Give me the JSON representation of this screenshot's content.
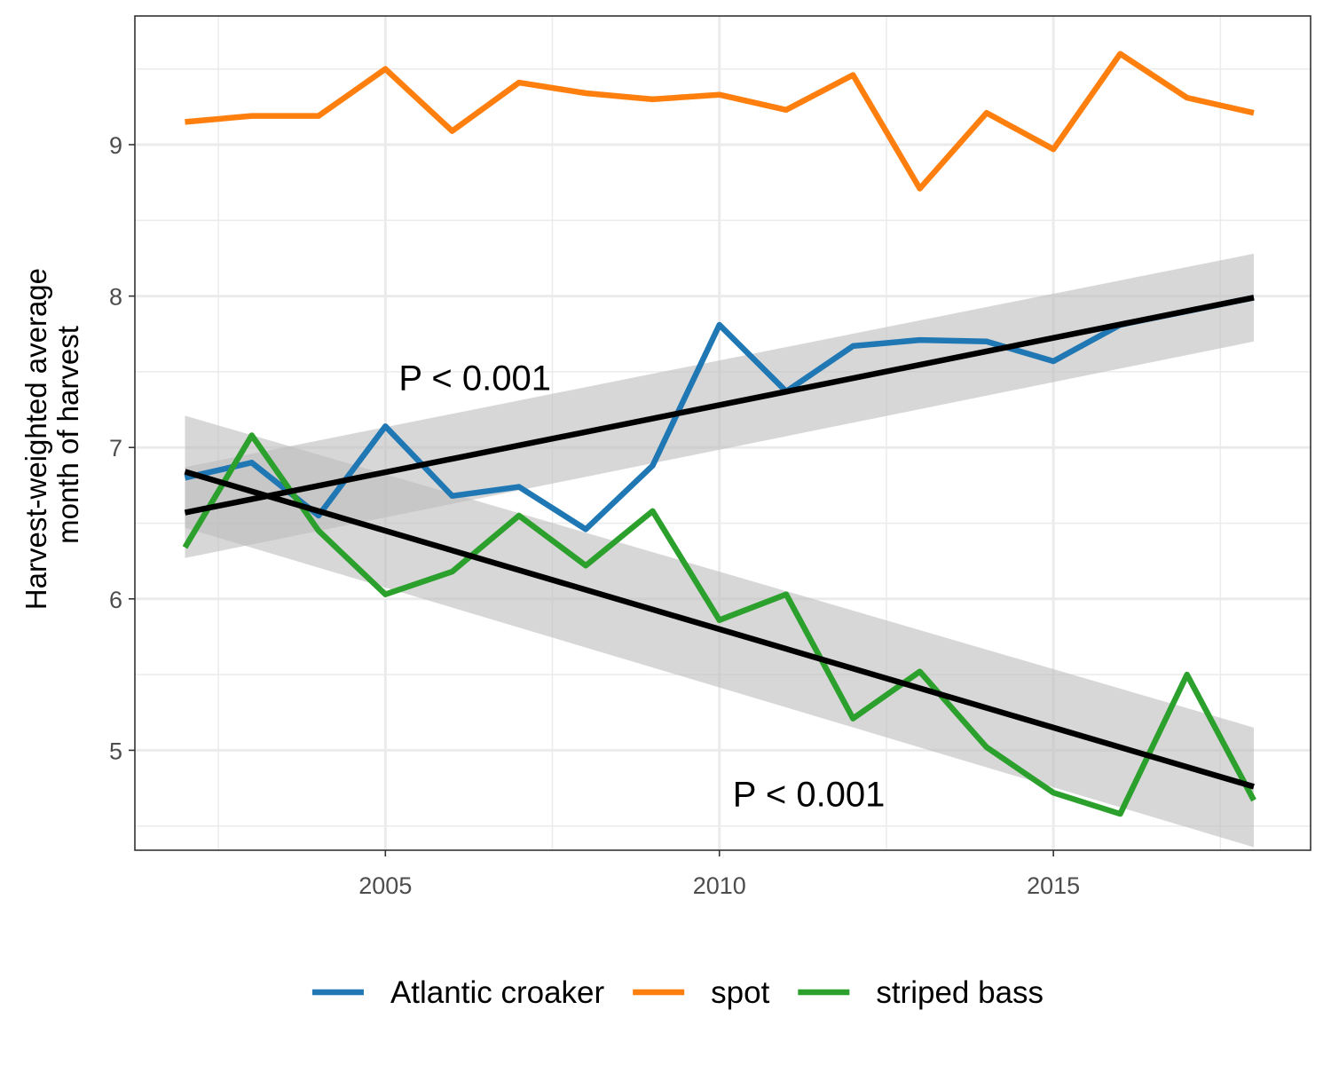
{
  "chart_data": {
    "type": "line",
    "title": "",
    "xlabel": "",
    "ylabel": "Harvest-weighted average month of harvest",
    "ylabel_lines": [
      "Harvest-weighted average",
      "month of harvest"
    ],
    "xlim": [
      2001.25,
      2018.85
    ],
    "ylim": [
      4.34,
      9.85
    ],
    "x_ticks": [
      2005,
      2010,
      2015
    ],
    "x_tick_labels": [
      "2005",
      "2010",
      "2015"
    ],
    "y_ticks": [
      5,
      6,
      7,
      8,
      9
    ],
    "y_tick_labels": [
      "5",
      "6",
      "7",
      "8",
      "9"
    ],
    "grid": true,
    "legend_position": "bottom",
    "x": [
      2002,
      2003,
      2004,
      2005,
      2006,
      2007,
      2008,
      2009,
      2010,
      2011,
      2012,
      2013,
      2014,
      2015,
      2016,
      2017,
      2018
    ],
    "series": [
      {
        "name": "Atlantic croaker",
        "color": "#1f77b4",
        "values": [
          6.8,
          6.9,
          6.55,
          7.14,
          6.68,
          6.74,
          6.46,
          6.88,
          7.81,
          7.37,
          7.67,
          7.71,
          7.7,
          7.57,
          7.81,
          7.9,
          7.99
        ]
      },
      {
        "name": "spot",
        "color": "#ff7f0e",
        "values": [
          9.15,
          9.19,
          9.19,
          9.5,
          9.09,
          9.41,
          9.34,
          9.3,
          9.33,
          9.23,
          9.46,
          8.71,
          9.21,
          8.97,
          9.6,
          9.31,
          9.21
        ]
      },
      {
        "name": "striped bass",
        "color": "#2ca02c",
        "values": [
          6.34,
          7.08,
          6.45,
          6.03,
          6.18,
          6.55,
          6.22,
          6.58,
          5.86,
          6.03,
          5.21,
          5.52,
          5.02,
          4.72,
          4.58,
          5.5,
          4.67
        ]
      }
    ],
    "trend_lines": [
      {
        "for": "Atlantic croaker",
        "color": "#000000",
        "x": [
          2002,
          2018
        ],
        "y": [
          6.57,
          7.99
        ],
        "band_lower": [
          6.27,
          7.7
        ],
        "band_upper": [
          6.87,
          8.28
        ]
      },
      {
        "for": "striped bass",
        "color": "#000000",
        "x": [
          2002,
          2018
        ],
        "y": [
          6.84,
          4.76
        ],
        "band_lower": [
          6.47,
          4.36
        ],
        "band_upper": [
          7.21,
          5.15
        ]
      }
    ],
    "band_color": "#bdbdbd",
    "annotations": [
      {
        "text": "P < 0.001",
        "x": 2005.2,
        "y": 7.38
      },
      {
        "text": "P < 0.001",
        "x": 2010.2,
        "y": 4.63
      }
    ]
  }
}
